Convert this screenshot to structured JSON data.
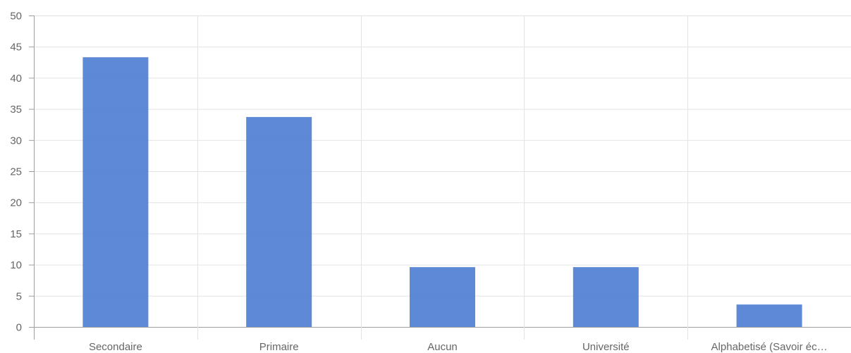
{
  "chart_data": {
    "type": "bar",
    "categories": [
      "Secondaire",
      "Primaire",
      "Aucun",
      "Université",
      "Alphabetisé (Savoir éc…"
    ],
    "values": [
      43.3,
      33.7,
      9.6,
      9.6,
      3.6
    ],
    "ylim": [
      0,
      50
    ],
    "yticks": [
      0,
      5,
      10,
      15,
      20,
      25,
      30,
      35,
      40,
      45,
      50
    ],
    "grid": true,
    "bar_color": "#4f7fd2",
    "grid_color": "#e3e3e3",
    "axis_color": "#9e9e9e",
    "text_color": "#666666",
    "title": "",
    "xlabel": "",
    "ylabel": ""
  }
}
